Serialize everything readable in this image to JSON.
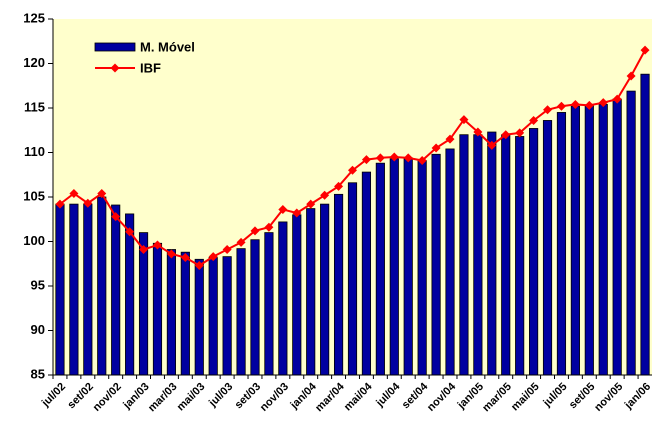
{
  "chart_data": {
    "type": "combo",
    "categories": [
      "jul/02",
      null,
      "set/02",
      null,
      "nov/02",
      null,
      "jan/03",
      null,
      "mar/03",
      null,
      "mai/03",
      null,
      "jul/03",
      null,
      "set/03",
      null,
      "nov/03",
      null,
      "jan/04",
      null,
      "mar/04",
      null,
      "mai/04",
      null,
      "jul/04",
      null,
      "set/04",
      null,
      "nov/04",
      null,
      "jan/05",
      null,
      "mar/05",
      null,
      "mai/05",
      null,
      "jul/05",
      null,
      "set/05",
      null,
      "nov/05",
      null,
      "jan/06"
    ],
    "series": [
      {
        "name": "M. Móvel",
        "type": "bar",
        "color": "#0000a0",
        "values": [
          104.2,
          104.2,
          104.2,
          105,
          104.1,
          103.1,
          101,
          99.8,
          99.1,
          98.8,
          98,
          98.2,
          98.3,
          99.2,
          100.2,
          101,
          102.2,
          103,
          103.7,
          104.2,
          105.3,
          106.6,
          107.8,
          108.8,
          109.3,
          109.4,
          109.1,
          109.8,
          110.4,
          112,
          112,
          112.3,
          112,
          111.8,
          112.7,
          113.6,
          114.5,
          115.2,
          115.3,
          115.4,
          116,
          116.9,
          118.8
        ]
      },
      {
        "name": "IBF",
        "type": "line",
        "color": "#ff0000",
        "values": [
          104.2,
          105.4,
          104.3,
          105.4,
          102.8,
          101.1,
          99.1,
          99.6,
          98.6,
          98.2,
          97.3,
          98.3,
          99.1,
          99.9,
          101.2,
          101.6,
          103.6,
          103.2,
          104.2,
          105.2,
          106.2,
          108,
          109.2,
          109.4,
          109.5,
          109.4,
          109.1,
          110.5,
          111.5,
          113.7,
          112.3,
          110.8,
          112,
          112.2,
          113.6,
          114.8,
          115.2,
          115.4,
          115.3,
          115.6,
          116,
          118.6,
          121.5
        ]
      }
    ],
    "ylim": [
      85,
      125
    ],
    "yticks": [
      85,
      90,
      95,
      100,
      105,
      110,
      115,
      120,
      125
    ],
    "plot_background": "#ffffcc",
    "grid": false,
    "legend": "upper-left"
  }
}
